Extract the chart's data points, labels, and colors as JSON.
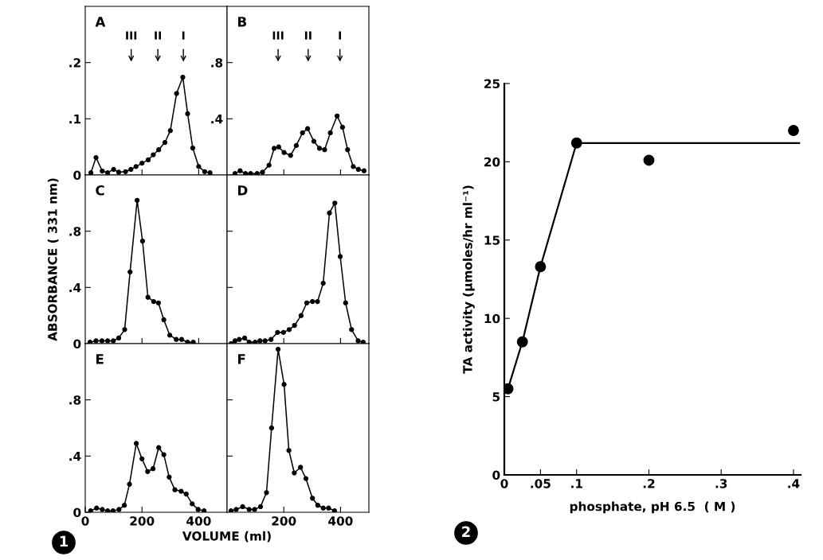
{
  "chart_data": [
    {
      "type": "line",
      "marker": "circle",
      "annotations": [
        "A",
        "III",
        "II",
        "I"
      ],
      "xlim": [
        0,
        500
      ],
      "xticks": [
        200,
        400
      ],
      "ylim": [
        0,
        0.3
      ],
      "yticks": [
        0,
        {
          "value": 0.1,
          "label": ".1"
        },
        {
          "value": 0.2,
          "label": ".2"
        }
      ],
      "tick_labels": "y",
      "series": [
        {
          "color": "#000000",
          "x": [
            20,
            38,
            60,
            79,
            100,
            118,
            142,
            161,
            179,
            200,
            222,
            240,
            259,
            281,
            300,
            322,
            344,
            361,
            379,
            400,
            421,
            440
          ],
          "values": [
            0.004,
            0.031,
            0.007,
            0.004,
            0.01,
            0.005,
            0.006,
            0.01,
            0.015,
            0.021,
            0.027,
            0.036,
            0.045,
            0.058,
            0.079,
            0.145,
            0.174,
            0.109,
            0.048,
            0.015,
            0.006,
            0.004
          ]
        }
      ]
    },
    {
      "type": "line",
      "marker": "circle",
      "annotations": [
        "B",
        "III",
        "II",
        "I"
      ],
      "xlim": [
        0,
        500
      ],
      "xticks": [
        200,
        400
      ],
      "ylim": [
        0,
        1.2
      ],
      "yticks": [
        {
          "value": 0,
          "label": null
        },
        {
          "value": 0.4,
          "label": ".4"
        },
        {
          "value": 0.8,
          "label": ".8"
        }
      ],
      "tick_labels": "y",
      "series": [
        {
          "color": "#000000",
          "x": [
            28,
            46,
            65,
            83,
            106,
            125,
            148,
            166,
            182,
            201,
            224,
            244,
            266,
            284,
            306,
            326,
            344,
            364,
            388,
            407,
            425,
            445,
            463,
            483
          ],
          "values": [
            0.01,
            0.03,
            0.01,
            0.01,
            0.01,
            0.02,
            0.07,
            0.19,
            0.2,
            0.16,
            0.14,
            0.21,
            0.3,
            0.33,
            0.24,
            0.19,
            0.18,
            0.3,
            0.42,
            0.34,
            0.18,
            0.06,
            0.04,
            0.03
          ]
        }
      ]
    },
    {
      "type": "line",
      "marker": "circle",
      "ylabel": "ABSORBANCE ( 331 nm)",
      "annotations": [
        "C"
      ],
      "xlim": [
        0,
        500
      ],
      "xticks": [
        200,
        400
      ],
      "ylim": [
        0,
        1.2
      ],
      "yticks": [
        0,
        {
          "value": 0.4,
          "label": ".4"
        },
        {
          "value": 0.8,
          "label": ".8"
        }
      ],
      "tick_labels": "y",
      "series": [
        {
          "color": "#000000",
          "x": [
            17,
            38,
            59,
            79,
            99,
            118,
            139,
            158,
            183,
            202,
            221,
            241,
            258,
            277,
            298,
            321,
            340,
            361,
            381
          ],
          "values": [
            0.01,
            0.02,
            0.02,
            0.02,
            0.02,
            0.04,
            0.1,
            0.51,
            1.02,
            0.73,
            0.33,
            0.3,
            0.29,
            0.17,
            0.06,
            0.03,
            0.03,
            0.01,
            0.01
          ]
        }
      ]
    },
    {
      "type": "line",
      "marker": "circle",
      "annotations": [
        "D"
      ],
      "xlim": [
        0,
        500
      ],
      "xticks": [
        200,
        400
      ],
      "ylim": [
        0,
        1.2
      ],
      "yticks": [
        {
          "value": 0.4,
          "label": null
        },
        {
          "value": 0.8,
          "label": null
        }
      ],
      "tick_labels": false,
      "series": [
        {
          "color": "#000000",
          "x": [
            14,
            28,
            43,
            62,
            78,
            99,
            116,
            134,
            155,
            178,
            199,
            219,
            238,
            261,
            281,
            301,
            319,
            339,
            361,
            380,
            399,
            418,
            439,
            462,
            480
          ],
          "values": [
            0.0,
            0.02,
            0.03,
            0.04,
            0.01,
            0.01,
            0.02,
            0.02,
            0.03,
            0.08,
            0.08,
            0.1,
            0.13,
            0.2,
            0.29,
            0.3,
            0.3,
            0.43,
            0.93,
            1.0,
            0.62,
            0.29,
            0.1,
            0.02,
            0.01
          ]
        }
      ]
    },
    {
      "type": "line",
      "marker": "circle",
      "xlabel": "VOLUME (ml)",
      "annotations": [
        "E",
        "1"
      ],
      "xlim": [
        0,
        500
      ],
      "xticks": [
        0,
        200,
        400
      ],
      "ylim": [
        0,
        1.2
      ],
      "yticks": [
        0,
        {
          "value": 0.4,
          "label": ".4"
        },
        {
          "value": 0.8,
          "label": ".8"
        }
      ],
      "series": [
        {
          "color": "#000000",
          "x": [
            19,
            40,
            60,
            79,
            98,
            119,
            138,
            156,
            180,
            200,
            220,
            239,
            259,
            277,
            296,
            316,
            338,
            356,
            377,
            398,
            419
          ],
          "values": [
            0.01,
            0.03,
            0.02,
            0.01,
            0.01,
            0.02,
            0.05,
            0.2,
            0.49,
            0.38,
            0.29,
            0.31,
            0.46,
            0.41,
            0.25,
            0.16,
            0.15,
            0.13,
            0.06,
            0.02,
            0.01
          ]
        }
      ]
    },
    {
      "type": "line",
      "marker": "circle",
      "annotations": [
        "F"
      ],
      "xlim": [
        0,
        500
      ],
      "xticks": [
        200,
        400
      ],
      "ylim": [
        0,
        1.2
      ],
      "yticks": [
        {
          "value": 0.4,
          "label": null
        },
        {
          "value": 0.8,
          "label": null
        }
      ],
      "tick_labels": "x",
      "series": [
        {
          "color": "#000000",
          "x": [
            14,
            32,
            55,
            78,
            97,
            118,
            139,
            157,
            180,
            201,
            218,
            237,
            259,
            278,
            301,
            320,
            339,
            358,
            379
          ],
          "values": [
            0.01,
            0.02,
            0.04,
            0.02,
            0.02,
            0.04,
            0.14,
            0.6,
            1.16,
            0.91,
            0.44,
            0.28,
            0.32,
            0.24,
            0.1,
            0.05,
            0.03,
            0.03,
            0.01
          ]
        }
      ]
    },
    {
      "type": "scatter",
      "xlabel": "phosphate, pH 6.5  ( M )",
      "ylabel": "TA activity (μmoles/hr ml⁻¹)",
      "annotations": [
        "2"
      ],
      "xlim": [
        0,
        0.41
      ],
      "xticks": [
        0,
        {
          "value": 0.05,
          "label": ".05"
        },
        {
          "value": 0.1,
          "label": ".1"
        },
        {
          "value": 0.2,
          "label": ".2"
        },
        {
          "value": 0.3,
          "label": ".3"
        },
        {
          "value": 0.4,
          "label": ".4"
        }
      ],
      "ylim": [
        0,
        25
      ],
      "yticks": [
        0,
        5,
        10,
        15,
        20,
        25
      ],
      "series": [
        {
          "type": "scatter",
          "marker": "circle",
          "color": "#000000",
          "x": [
            0.005,
            0.025,
            0.05,
            0.1,
            0.2,
            0.4
          ],
          "values": [
            5.5,
            8.5,
            13.3,
            21.2,
            20.1,
            22.0
          ]
        },
        {
          "type": "line",
          "color": "#000000",
          "x": [
            0.005,
            0.025,
            0.05,
            0.1,
            0.408
          ],
          "values": [
            5.5,
            8.5,
            13.3,
            21.2,
            21.2
          ]
        }
      ]
    }
  ]
}
